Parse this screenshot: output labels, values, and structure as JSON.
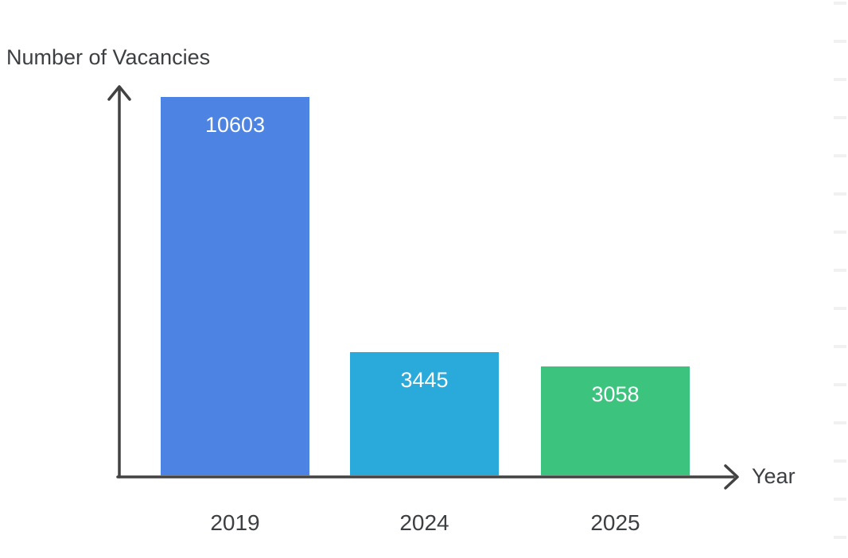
{
  "chart_data": {
    "type": "bar",
    "title": "Number of Vacancies",
    "xlabel": "Year",
    "ylabel": "Number of Vacancies",
    "categories": [
      "2019",
      "2024",
      "2025"
    ],
    "values": [
      10603,
      3445,
      3058
    ],
    "ylim": [
      0,
      10603
    ],
    "grid": false,
    "legend": false,
    "bar_colors": [
      "#4D84E3",
      "#29AADB",
      "#3CC47E"
    ],
    "value_label_color": "#ffffff",
    "axis_color": "#424242",
    "text_color": "#3d4043"
  }
}
